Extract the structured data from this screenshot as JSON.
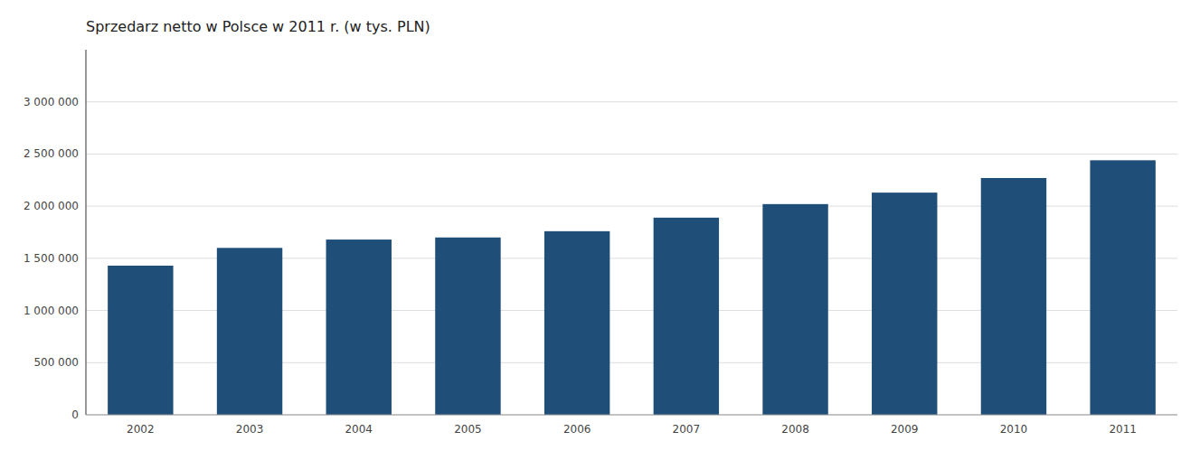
{
  "chart_data": {
    "type": "bar",
    "title": "Sprzedarz netto w Polsce w 2011 r. (w tys. PLN)",
    "categories": [
      "2002",
      "2003",
      "2004",
      "2005",
      "2006",
      "2007",
      "2008",
      "2009",
      "2010",
      "2011"
    ],
    "values": [
      1430000,
      1600000,
      1680000,
      1700000,
      1760000,
      1890000,
      2020000,
      2130000,
      2270000,
      2440000
    ],
    "color": "#1f4e79",
    "ylim": [
      0,
      3500000
    ],
    "yticks": [
      0,
      {
        "value": 500000,
        "label": "500 000"
      },
      {
        "value": 1000000,
        "label": "1 000 000"
      },
      {
        "value": 1500000,
        "label": "1 500 000"
      },
      {
        "value": 2000000,
        "label": "2 000 000"
      },
      {
        "value": 2500000,
        "label": "2 500 000"
      },
      {
        "value": 3000000,
        "label": "3 000 000"
      }
    ],
    "grid": true
  }
}
